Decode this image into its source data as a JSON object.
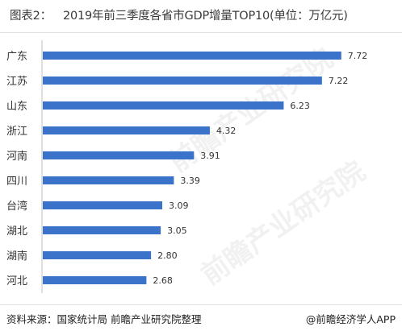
{
  "header": {
    "figure_label": "图表2：",
    "title": "2019年前三季度各省市GDP增量TOP10(单位：万亿元)"
  },
  "chart_data": {
    "type": "bar",
    "orientation": "horizontal",
    "categories": [
      "广东",
      "江苏",
      "山东",
      "浙江",
      "河南",
      "四川",
      "台湾",
      "湖北",
      "湖南",
      "河北"
    ],
    "values": [
      7.72,
      7.22,
      6.23,
      4.32,
      3.91,
      3.39,
      3.09,
      3.05,
      2.8,
      2.68
    ],
    "value_labels": [
      "7.72",
      "7.22",
      "6.23",
      "4.32",
      "3.91",
      "3.39",
      "3.09",
      "3.05",
      "2.80",
      "2.68"
    ],
    "xlim": [
      0,
      8.1
    ],
    "bar_color": "#3a73c9",
    "grid": false,
    "legend": "none"
  },
  "footer": {
    "source": "资料来源：国家统计局 前瞻产业研究院整理",
    "brand": "@前瞻经济学人APP"
  },
  "watermark": {
    "text": "前瞻产业研究院"
  }
}
